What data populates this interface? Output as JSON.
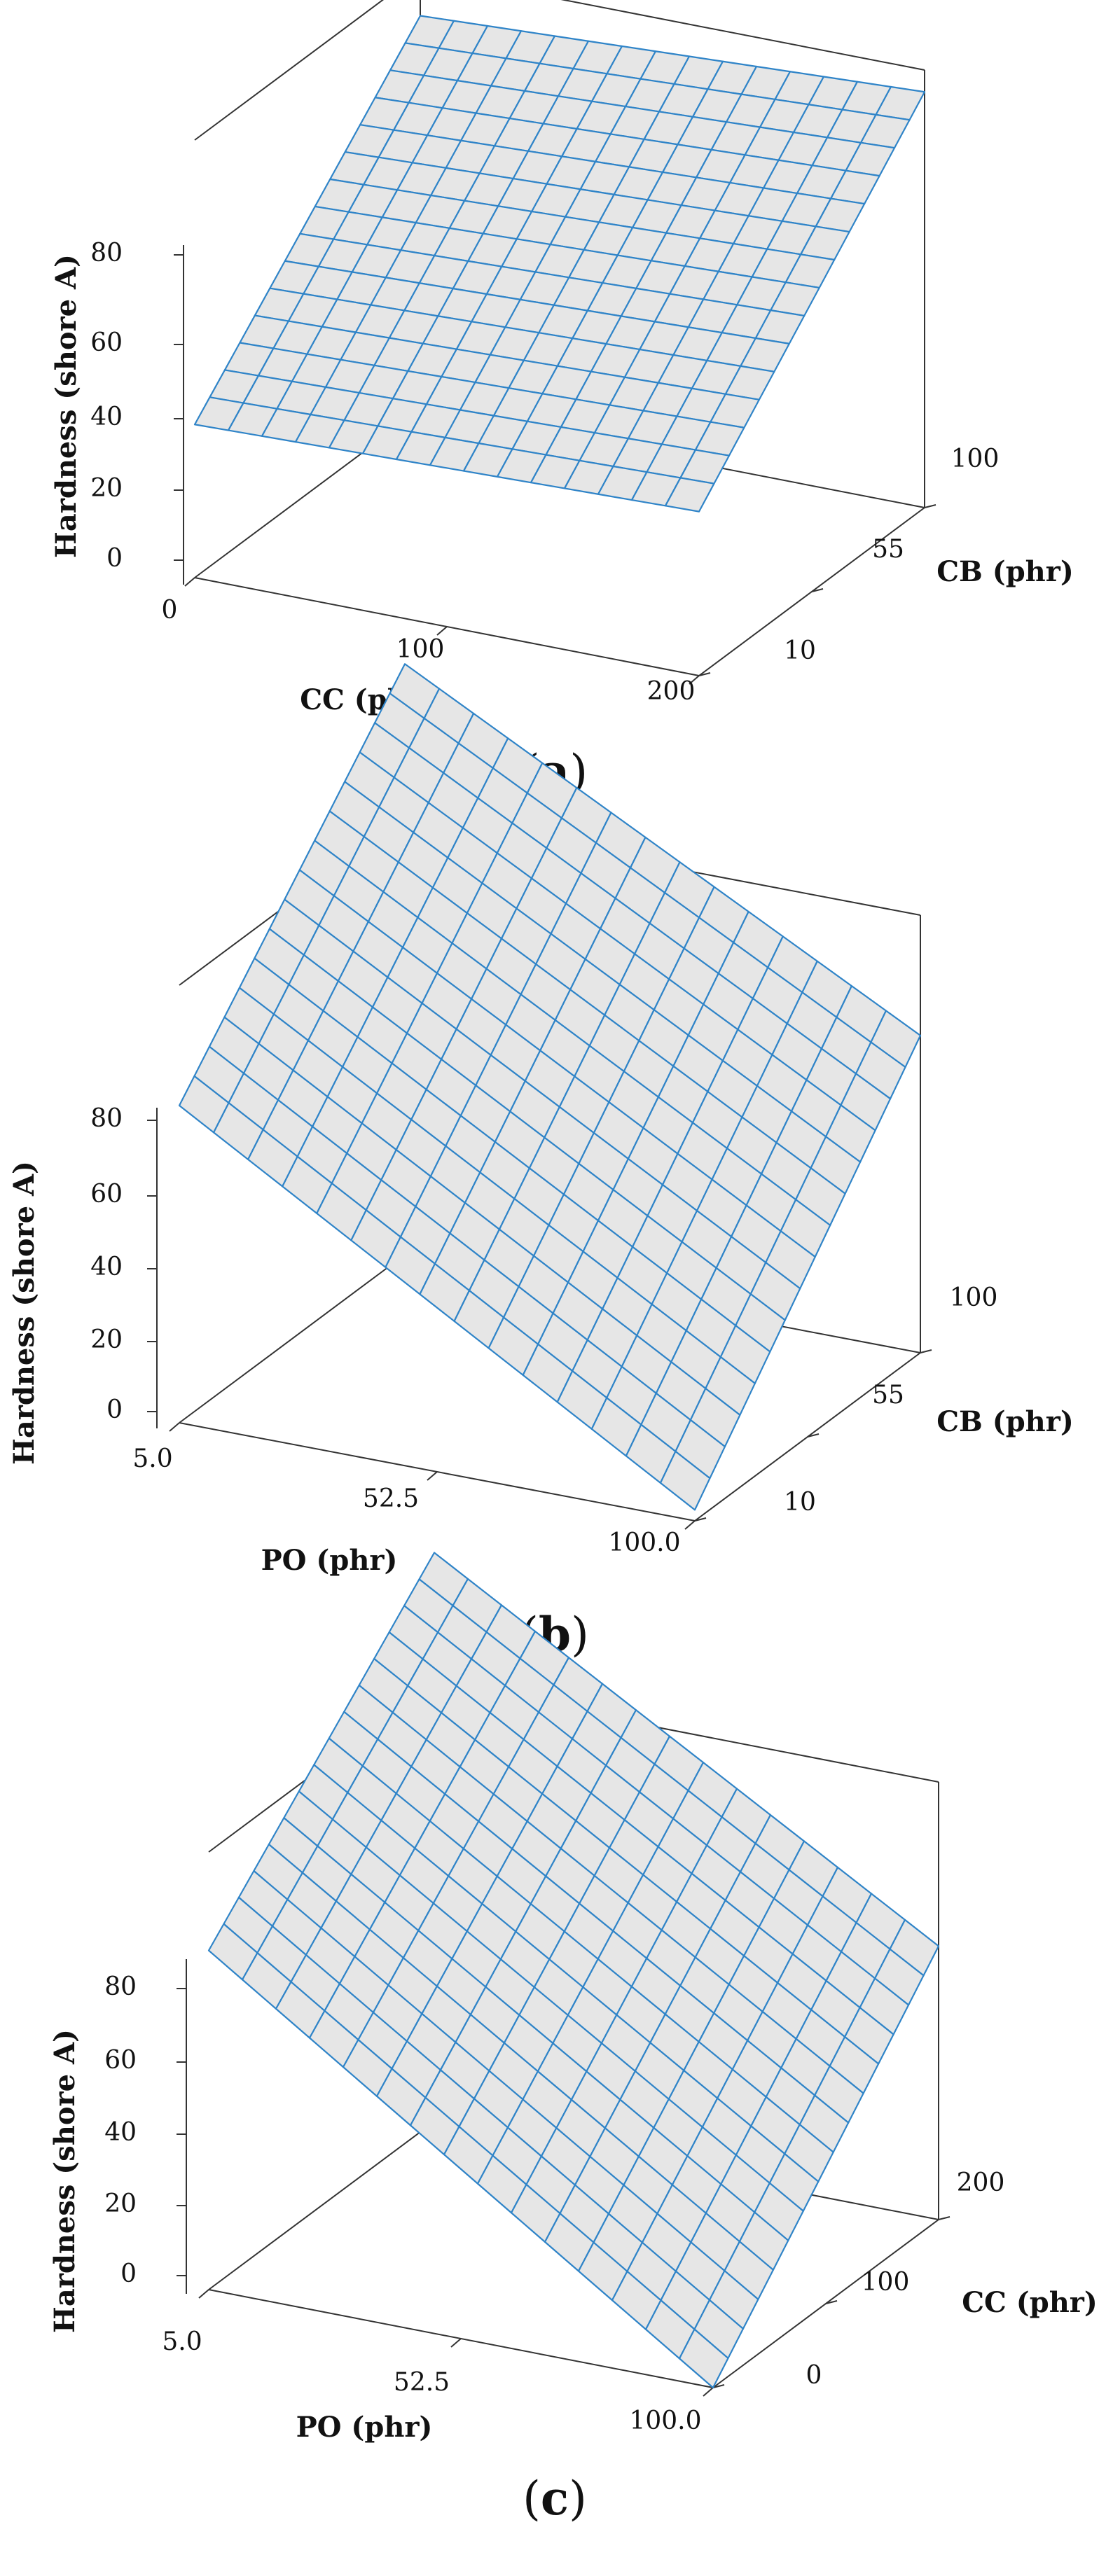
{
  "panels": [
    {
      "caption": "a",
      "z_label": "Hardness (shore A)",
      "z_ticks": [
        "0",
        "20",
        "40",
        "60",
        "80"
      ],
      "x_label": "CC (phr)",
      "x_ticks": [
        "0",
        "100",
        "200"
      ],
      "y_label": "CB (phr)",
      "y_ticks": [
        "10",
        "55",
        "100"
      ]
    },
    {
      "caption": "b",
      "z_label": "Hardness (shore A)",
      "z_ticks": [
        "0",
        "20",
        "40",
        "60",
        "80"
      ],
      "x_label": "PO (phr)",
      "x_ticks": [
        "5.0",
        "52.5",
        "100.0"
      ],
      "y_label": "CB (phr)",
      "y_ticks": [
        "10",
        "55",
        "100"
      ]
    },
    {
      "caption": "c",
      "z_label": "Hardness (shore A)",
      "z_ticks": [
        "0",
        "20",
        "40",
        "60",
        "80"
      ],
      "x_label": "PO (phr)",
      "x_ticks": [
        "5.0",
        "52.5",
        "100.0"
      ],
      "y_label": "CC (phr)",
      "y_ticks": [
        "0",
        "100",
        "200"
      ]
    }
  ],
  "chart_data": [
    {
      "type": "surface",
      "xlabel": "CC (phr)",
      "ylabel": "CB (phr)",
      "zlabel": "Hardness (shore A)",
      "x_range": [
        0,
        200
      ],
      "y_range": [
        10,
        100
      ],
      "z_range": [
        0,
        80
      ],
      "grid_size": [
        15,
        15
      ],
      "corners": {
        "x_min_y_min": 28,
        "x_max_y_min": 30,
        "x_min_y_max": 72,
        "x_max_y_max": 76
      },
      "colors": {
        "surface_fill": "#e6e6e6",
        "mesh": "#2f84c8"
      }
    },
    {
      "type": "surface",
      "xlabel": "PO (phr)",
      "ylabel": "CB (phr)",
      "zlabel": "Hardness (shore A)",
      "x_range": [
        5.0,
        100.0
      ],
      "y_range": [
        10,
        100
      ],
      "z_range": [
        0,
        80
      ],
      "grid_size": [
        15,
        15
      ],
      "corners": {
        "x_min_y_min": 58,
        "x_max_y_min": 2,
        "x_min_y_max": 108,
        "x_max_y_max": 58
      },
      "colors": {
        "surface_fill": "#e6e6e6",
        "mesh": "#2f84c8"
      }
    },
    {
      "type": "surface",
      "xlabel": "PO (phr)",
      "ylabel": "CC (phr)",
      "zlabel": "Hardness (shore A)",
      "x_range": [
        5.0,
        100.0
      ],
      "y_range": [
        0,
        200
      ],
      "z_range": [
        0,
        80
      ],
      "grid_size": [
        15,
        15
      ],
      "corners": {
        "x_min_y_min": 62,
        "x_max_y_min": 0,
        "x_min_y_max": 104,
        "x_max_y_max": 50
      },
      "colors": {
        "surface_fill": "#e6e6e6",
        "mesh": "#2f84c8"
      }
    }
  ]
}
